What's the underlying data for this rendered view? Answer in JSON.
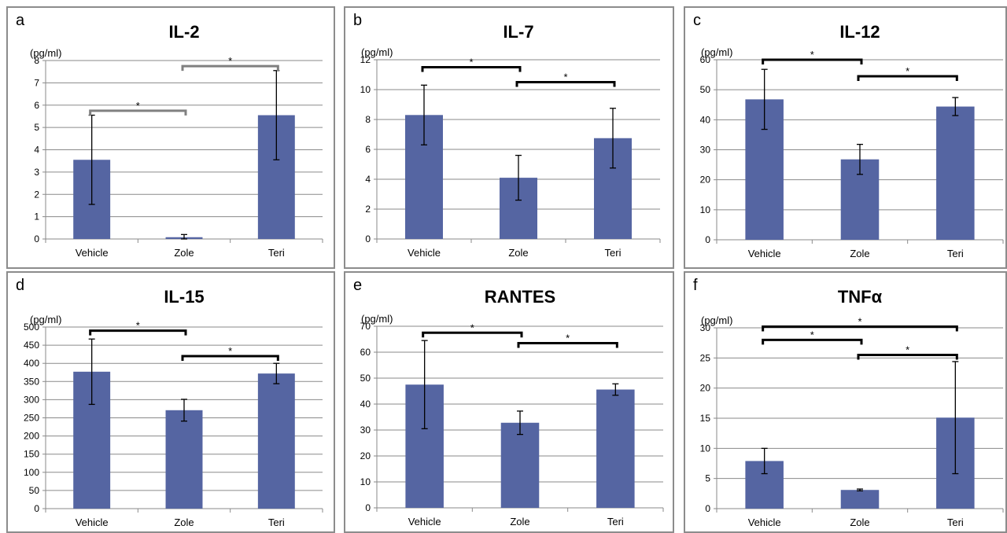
{
  "colors": {
    "bar": "#5565a2",
    "grid": "#8a8a8a",
    "bracket_dark": "#000000",
    "bracket_light": "#808080"
  },
  "chart_data": [
    {
      "type": "bar",
      "panel_label": "a",
      "title": "IL-2",
      "unit": "(pg/ml)",
      "categories": [
        "Vehicle",
        "Zole",
        "Teri"
      ],
      "values": [
        3.55,
        0.08,
        5.55
      ],
      "errors": [
        2.0,
        0.12,
        2.0
      ],
      "ylim": [
        0,
        8
      ],
      "yticks": [
        0,
        1,
        2,
        3,
        4,
        5,
        6,
        7,
        8
      ],
      "grid": true,
      "significance": [
        {
          "from": "Vehicle",
          "to": "Zole",
          "level": 5.75,
          "label": "*",
          "style": "light"
        },
        {
          "from": "Zole",
          "to": "Teri",
          "level": 7.75,
          "label": "*",
          "style": "light"
        }
      ]
    },
    {
      "type": "bar",
      "panel_label": "b",
      "title": "IL-7",
      "unit": "(pg/ml)",
      "categories": [
        "Vehicle",
        "Zole",
        "Teri"
      ],
      "values": [
        8.3,
        4.1,
        6.75
      ],
      "errors": [
        2.0,
        1.5,
        2.0
      ],
      "ylim": [
        0,
        12
      ],
      "yticks": [
        0,
        2,
        4,
        6,
        8,
        10,
        12
      ],
      "grid": true,
      "significance": [
        {
          "from": "Vehicle",
          "to": "Zole",
          "level": 11.5,
          "label": "*",
          "style": "dark"
        },
        {
          "from": "Zole",
          "to": "Teri",
          "level": 10.5,
          "label": "*",
          "style": "dark"
        }
      ]
    },
    {
      "type": "bar",
      "panel_label": "c",
      "title": "IL-12",
      "unit": "(pg/ml)",
      "categories": [
        "Vehicle",
        "Zole",
        "Teri"
      ],
      "values": [
        46.8,
        26.8,
        44.4
      ],
      "errors": [
        10.0,
        5.0,
        3.0
      ],
      "ylim": [
        0,
        60
      ],
      "yticks": [
        0,
        10,
        20,
        30,
        40,
        50,
        60
      ],
      "grid": true,
      "significance": [
        {
          "from": "Vehicle",
          "to": "Zole",
          "level": 60,
          "label": "*",
          "style": "dark"
        },
        {
          "from": "Zole",
          "to": "Teri",
          "level": 54.5,
          "label": "*",
          "style": "dark"
        }
      ]
    },
    {
      "type": "bar",
      "panel_label": "d",
      "title": "IL-15",
      "unit": "(pg/ml)",
      "categories": [
        "Vehicle",
        "Zole",
        "Teri"
      ],
      "values": [
        377,
        271,
        372
      ],
      "errors": [
        90,
        30,
        28
      ],
      "ylim": [
        0,
        500
      ],
      "yticks": [
        0,
        50,
        100,
        150,
        200,
        250,
        300,
        350,
        400,
        450,
        500
      ],
      "grid": true,
      "significance": [
        {
          "from": "Vehicle",
          "to": "Zole",
          "level": 490,
          "label": "*",
          "style": "dark"
        },
        {
          "from": "Zole",
          "to": "Teri",
          "level": 420,
          "label": "*",
          "style": "dark"
        }
      ]
    },
    {
      "type": "bar",
      "panel_label": "e",
      "title": "RANTES",
      "unit": "(pg/ml)",
      "categories": [
        "Vehicle",
        "Zole",
        "Teri"
      ],
      "values": [
        47.5,
        32.8,
        45.6
      ],
      "errors": [
        17.0,
        4.5,
        2.2
      ],
      "ylim": [
        0,
        70
      ],
      "yticks": [
        0,
        10,
        20,
        30,
        40,
        50,
        60,
        70
      ],
      "grid": true,
      "significance": [
        {
          "from": "Vehicle",
          "to": "Zole",
          "level": 67.5,
          "label": "*",
          "style": "dark"
        },
        {
          "from": "Zole",
          "to": "Teri",
          "level": 63.5,
          "label": "*",
          "style": "dark"
        }
      ]
    },
    {
      "type": "bar",
      "panel_label": "f",
      "title": "TNFα",
      "unit": "(pg/ml)",
      "categories": [
        "Vehicle",
        "Zole",
        "Teri"
      ],
      "values": [
        7.9,
        3.1,
        15.1
      ],
      "errors": [
        2.1,
        0.15,
        9.3
      ],
      "ylim": [
        0,
        30
      ],
      "yticks": [
        0,
        5,
        10,
        15,
        20,
        25,
        30
      ],
      "grid": true,
      "significance": [
        {
          "from": "Vehicle",
          "to": "Teri",
          "level": 30.2,
          "label": "*",
          "style": "dark"
        },
        {
          "from": "Vehicle",
          "to": "Zole",
          "level": 28,
          "label": "*",
          "style": "dark"
        },
        {
          "from": "Zole",
          "to": "Teri",
          "level": 25.5,
          "label": "*",
          "style": "dark"
        }
      ]
    }
  ]
}
